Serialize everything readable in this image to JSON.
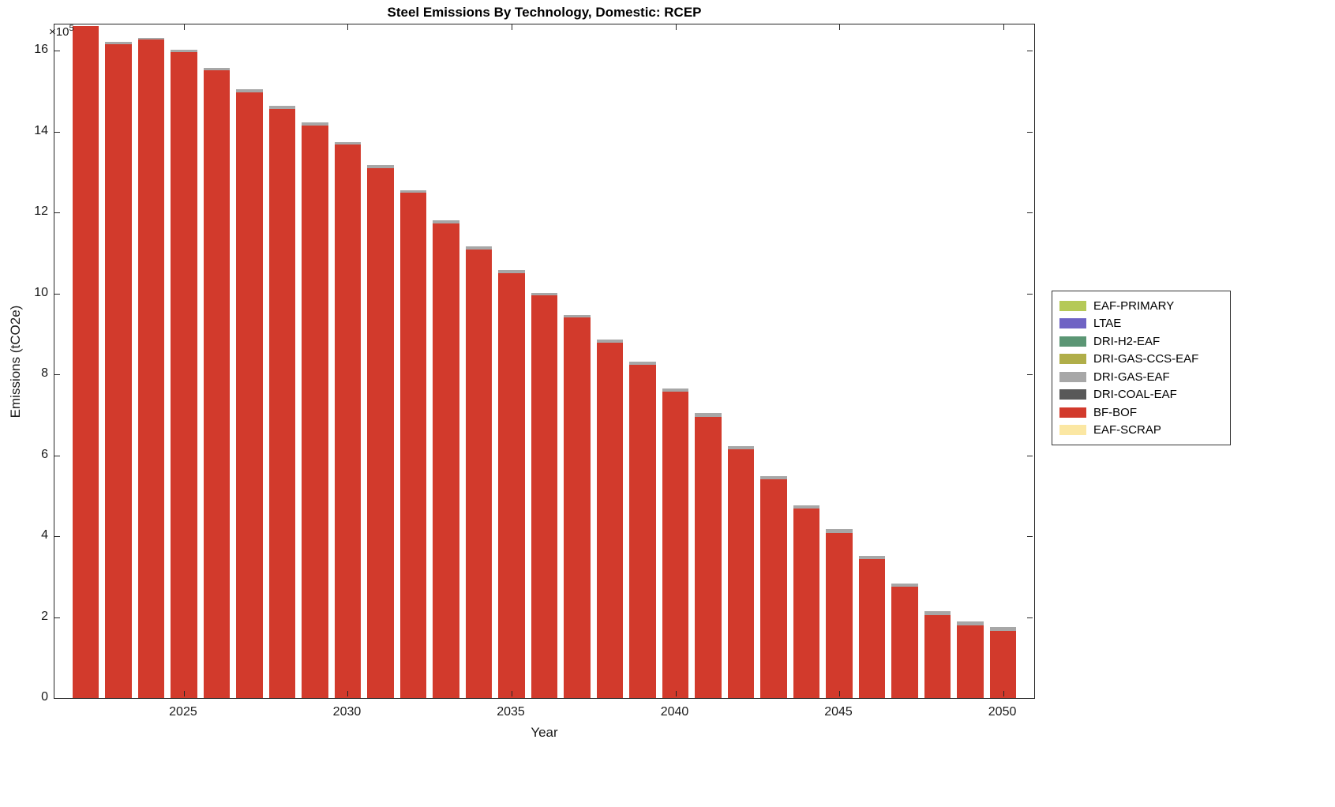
{
  "title": "Steel Emissions By Technology, Domestic: RCEP",
  "xlabel": "Year",
  "ylabel": "Emissions (tCO2e)",
  "y_exponent": {
    "prefix": "×10",
    "exp": "5"
  },
  "colors": {
    "bf_bof": "#d23a2c",
    "dri_gas_eaf": "#a7a7a7",
    "axis": "#262626"
  },
  "chart_data": {
    "type": "bar",
    "stacked": true,
    "title": "Steel Emissions By Technology, Domestic: RCEP",
    "xlabel": "Year",
    "ylabel": "Emissions (tCO2e)",
    "y_unit_multiplier": "1e5",
    "x": [
      2022,
      2023,
      2024,
      2025,
      2026,
      2027,
      2028,
      2029,
      2030,
      2031,
      2032,
      2033,
      2034,
      2035,
      2036,
      2037,
      2038,
      2039,
      2040,
      2041,
      2042,
      2043,
      2044,
      2045,
      2046,
      2047,
      2048,
      2049,
      2050
    ],
    "series": [
      {
        "name": "BF-BOF",
        "color": "#d23a2c",
        "values": [
          16.62,
          16.17,
          16.27,
          15.97,
          15.51,
          14.98,
          14.56,
          14.15,
          13.68,
          13.1,
          12.49,
          11.73,
          11.09,
          10.51,
          9.95,
          9.4,
          8.79,
          8.23,
          7.57,
          6.95,
          6.14,
          5.4,
          4.68,
          4.08,
          3.43,
          2.75,
          2.04,
          1.8,
          1.66
        ]
      },
      {
        "name": "DRI-GAS-EAF",
        "color": "#a7a7a7",
        "values": [
          0.0,
          0.05,
          0.05,
          0.05,
          0.07,
          0.07,
          0.07,
          0.07,
          0.07,
          0.07,
          0.07,
          0.07,
          0.07,
          0.07,
          0.07,
          0.07,
          0.08,
          0.08,
          0.08,
          0.09,
          0.09,
          0.09,
          0.09,
          0.09,
          0.09,
          0.09,
          0.1,
          0.1,
          0.1
        ]
      }
    ],
    "legend": [
      {
        "label": "EAF-PRIMARY",
        "color": "#b5c957"
      },
      {
        "label": "LTAE",
        "color": "#6f63c4"
      },
      {
        "label": "DRI-H2-EAF",
        "color": "#5b9674"
      },
      {
        "label": "DRI-GAS-CCS-EAF",
        "color": "#b0ae49"
      },
      {
        "label": "DRI-GAS-EAF",
        "color": "#a7a7a7"
      },
      {
        "label": "DRI-COAL-EAF",
        "color": "#595959"
      },
      {
        "label": "BF-BOF",
        "color": "#d23a2c"
      },
      {
        "label": "EAF-SCRAP",
        "color": "#fbe7a3"
      }
    ],
    "xticks": [
      2025,
      2030,
      2035,
      2040,
      2045,
      2050
    ],
    "yticks": [
      0,
      2,
      4,
      6,
      8,
      10,
      12,
      14,
      16
    ],
    "xlim": [
      2021.05,
      2050.95
    ],
    "ylim": [
      0,
      16.65
    ],
    "bar_width_years": 0.8,
    "grid": false,
    "legend_position": "outside-right"
  }
}
